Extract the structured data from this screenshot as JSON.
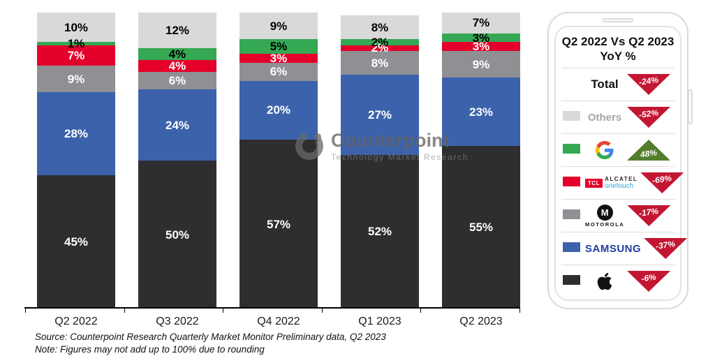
{
  "chart_data": {
    "type": "bar",
    "stacked": true,
    "title": "",
    "xlabel": "",
    "ylabel": "",
    "ylim": [
      0,
      100
    ],
    "grid": false,
    "categories": [
      "Q2 2022",
      "Q3 2022",
      "Q4 2022",
      "Q1 2023",
      "Q2 2023"
    ],
    "series": [
      {
        "name": "Apple",
        "color": "#2e2e30",
        "label_color": "#ffffff",
        "values": [
          45,
          50,
          57,
          52,
          55
        ]
      },
      {
        "name": "Samsung",
        "color": "#3c62ac",
        "label_color": "#ffffff",
        "values": [
          28,
          24,
          20,
          27,
          23
        ]
      },
      {
        "name": "Motorola",
        "color": "#8f9093",
        "label_color": "#ffffff",
        "values": [
          9,
          6,
          6,
          8,
          9
        ]
      },
      {
        "name": "TCL Alcatel",
        "color": "#e4002b",
        "label_color": "#ffffff",
        "values": [
          7,
          4,
          3,
          2,
          3
        ]
      },
      {
        "name": "Google",
        "color": "#34a853",
        "label_color": "#000000",
        "values": [
          1,
          4,
          5,
          2,
          3
        ]
      },
      {
        "name": "Others",
        "color": "#d9d9d9",
        "label_color": "#000000",
        "values": [
          10,
          12,
          9,
          8,
          7
        ]
      }
    ],
    "legend_position": "right"
  },
  "legend": {
    "title_line1": "Q2 2022 Vs Q2 2023",
    "title_line2": "YoY %",
    "rows": [
      {
        "brand": "Total",
        "label": "Total",
        "change": "-24%",
        "direction": "down",
        "arrow_color": "#c31632"
      },
      {
        "brand": "Others",
        "label": "Others",
        "change": "-52%",
        "direction": "down",
        "arrow_color": "#c31632",
        "swatch": "#d9d9d9"
      },
      {
        "brand": "Google",
        "change": "48%",
        "direction": "up",
        "arrow_color": "#527d2c",
        "swatch": "#34a853"
      },
      {
        "brand": "TCL Alcatel onetouch",
        "change": "-69%",
        "direction": "down",
        "arrow_color": "#c31632",
        "swatch": "#e4002b",
        "logo_parts": {
          "tcl": "TCL",
          "alcatel": "ALCATEL",
          "onetouch": "onetouch"
        }
      },
      {
        "brand": "Motorola",
        "change": "-17%",
        "direction": "down",
        "arrow_color": "#c31632",
        "swatch": "#8f9093",
        "logo_parts": {
          "letter": "M",
          "word": "MOTOROLA"
        }
      },
      {
        "brand": "Samsung",
        "change": "-37%",
        "direction": "down",
        "arrow_color": "#c31632",
        "swatch": "#3c62ac",
        "logo_parts": {
          "word": "SAMSUNG"
        }
      },
      {
        "brand": "Apple",
        "change": "-6%",
        "direction": "down",
        "arrow_color": "#c31632",
        "swatch": "#2e2e30"
      }
    ]
  },
  "watermark": {
    "title": "Counterpoint",
    "subtitle": "Technology Market Research"
  },
  "footer": {
    "source": "Source: Counterpoint Research Quarterly Market Monitor Preliminary data, Q2 2023",
    "note": "Note: Figures may not add up to 100% due to rounding"
  }
}
